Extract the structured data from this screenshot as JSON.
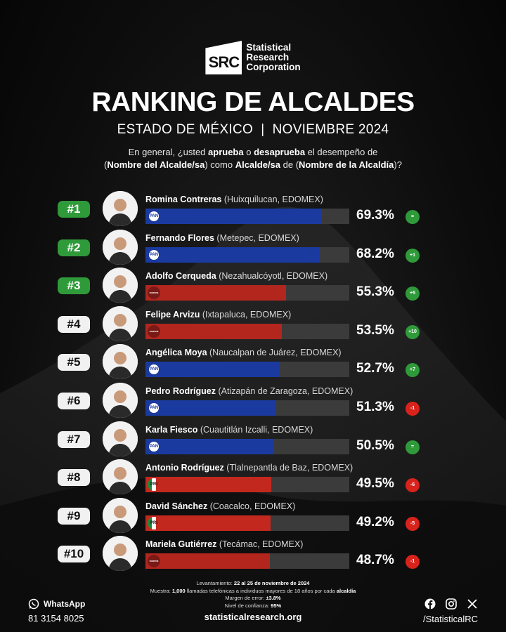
{
  "header": {
    "logo_mark": "SRC",
    "logo_lines": [
      "Statistical",
      "Research",
      "Corporation"
    ],
    "title": "RANKING DE ALCALDES",
    "subtitle": "ESTADO DE MÉXICO  |  NOVIEMBRE 2024",
    "question": {
      "p1": "En general, ¿usted ",
      "b1": "aprueba",
      "p2": " o ",
      "b2": "desaprueba",
      "p3": " el desempeño de",
      "p4": "(",
      "b3": "Nombre del Alcalde/sa",
      "p5": ") como ",
      "b4": "Alcalde/sa",
      "p6": " de (",
      "b5": "Nombre de la Alcaldía",
      "p7": ")?"
    }
  },
  "colors": {
    "pan": "#1b3aa0",
    "morena": "#b3261e",
    "pri": "#c3281f",
    "up": "#2f9a3a",
    "down": "#d8231c",
    "track": "#3b3b3b"
  },
  "chart_data": {
    "type": "bar",
    "orientation": "horizontal",
    "xlim": [
      0,
      80
    ],
    "rows": [
      {
        "rank": "#1",
        "name": "Romina Contreras",
        "location": "(Huixquilucan, EDOMEX)",
        "party": "PAN",
        "value": 69.3,
        "value_label": "69.3%",
        "change": "="
      },
      {
        "rank": "#2",
        "name": "Fernando Flores",
        "location": "(Metepec, EDOMEX)",
        "party": "PAN",
        "value": 68.2,
        "value_label": "68.2%",
        "change": "+1"
      },
      {
        "rank": "#3",
        "name": "Adolfo Cerqueda",
        "location": "(Nezahualcóyotl, EDOMEX)",
        "party": "morena",
        "value": 55.3,
        "value_label": "55.3%",
        "change": "+5"
      },
      {
        "rank": "#4",
        "name": "Felipe Arvizu",
        "location": "(Ixtapaluca, EDOMEX)",
        "party": "morena",
        "value": 53.5,
        "value_label": "53.5%",
        "change": "+10"
      },
      {
        "rank": "#5",
        "name": "Angélica Moya",
        "location": "(Naucalpan de Juárez, EDOMEX)",
        "party": "PAN",
        "value": 52.7,
        "value_label": "52.7%",
        "change": "+7"
      },
      {
        "rank": "#6",
        "name": "Pedro Rodríguez",
        "location": "(Atizapán de Zaragoza, EDOMEX)",
        "party": "PAN",
        "value": 51.3,
        "value_label": "51.3%",
        "change": "-1"
      },
      {
        "rank": "#7",
        "name": "Karla Fiesco",
        "location": "(Cuautitlán Izcalli, EDOMEX)",
        "party": "PAN",
        "value": 50.5,
        "value_label": "50.5%",
        "change": "="
      },
      {
        "rank": "#8",
        "name": "Antonio Rodríguez",
        "location": "(Tlalnepantla de Baz, EDOMEX)",
        "party": "PRI",
        "value": 49.5,
        "value_label": "49.5%",
        "change": "-6"
      },
      {
        "rank": "#9",
        "name": "David Sánchez",
        "location": "(Coacalco, EDOMEX)",
        "party": "PRI",
        "value": 49.2,
        "value_label": "49.2%",
        "change": "-5"
      },
      {
        "rank": "#10",
        "name": "Mariela Gutiérrez",
        "location": "(Tecámac, EDOMEX)",
        "party": "morena",
        "value": 48.7,
        "value_label": "48.7%",
        "change": "-1"
      }
    ]
  },
  "footer": {
    "l1a": "Levantamiento: ",
    "l1b": "22 al 25 de noviembre de 2024",
    "l2a": "Muestra: ",
    "l2b": "1,000",
    "l2c": " llamadas telefónicas a individuos mayores de 18 años por cada ",
    "l2d": "alcaldía",
    "l3a": "Margen de error: ",
    "l3b": "±3.8%",
    "l4a": "Nivel de confianza: ",
    "l4b": "95%",
    "website": "statisticalresearch.org",
    "whatsapp_label": "WhatsApp",
    "whatsapp_number": "81 3154 8025",
    "social_handle": "/StatisticalRC"
  }
}
